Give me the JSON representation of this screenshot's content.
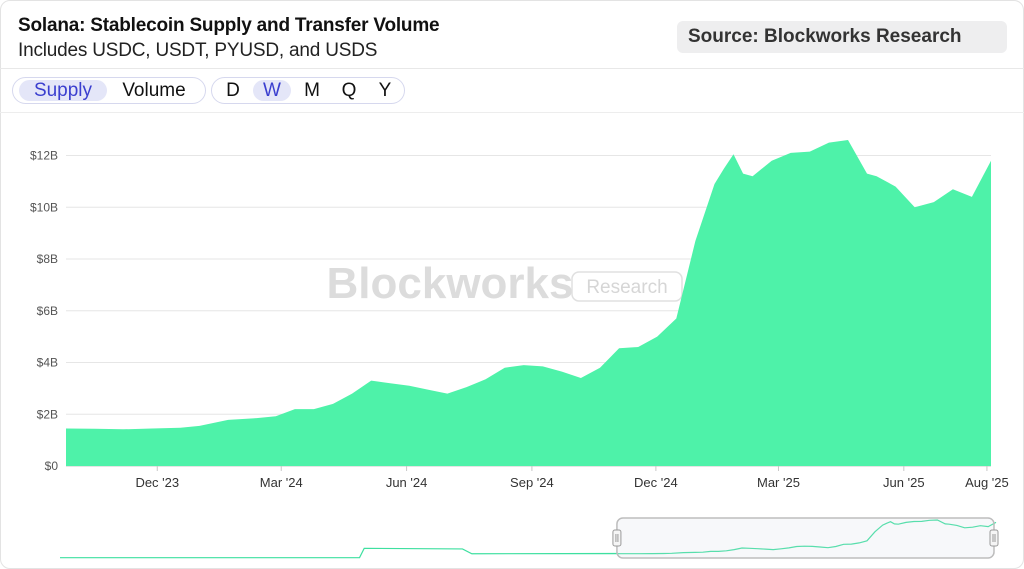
{
  "header": {
    "title": "Solana: Stablecoin Supply and Transfer Volume",
    "subtitle": "Includes USDC, USDT, PYUSD, and USDS",
    "source": "Source: Blockworks Research"
  },
  "controls": {
    "metric_tabs": [
      {
        "label": "Supply",
        "active": true
      },
      {
        "label": "Volume",
        "active": false
      }
    ],
    "interval_tabs": [
      {
        "label": "D",
        "active": false
      },
      {
        "label": "W",
        "active": true
      },
      {
        "label": "M",
        "active": false
      },
      {
        "label": "Q",
        "active": false
      },
      {
        "label": "Y",
        "active": false
      }
    ]
  },
  "watermark": {
    "brand": "Blockworks",
    "badge": "Research"
  },
  "colors": {
    "area_fill": "#4ef2a9",
    "active_tab_text": "#3b3fcf",
    "active_tab_bg": "#e4e6f8",
    "navigator_line": "#3ee0a0"
  },
  "chart_data": {
    "type": "area",
    "title": "Solana: Stablecoin Supply and Transfer Volume",
    "subtitle": "Includes USDC, USDT, PYUSD, and USDS",
    "xlabel": "",
    "ylabel": "",
    "grid": true,
    "ylim": [
      0,
      12.6
    ],
    "y_unit": "$B",
    "y_ticks": [
      "$0",
      "$2B",
      "$4B",
      "$6B",
      "$8B",
      "$10B",
      "$12B"
    ],
    "y_tick_values": [
      0,
      2,
      4,
      6,
      8,
      10,
      12
    ],
    "x_range": [
      "2023-09-25",
      "2025-08-04"
    ],
    "x_ticks": [
      {
        "label": "Dec '23",
        "date": "2023-12-01"
      },
      {
        "label": "Mar '24",
        "date": "2024-03-01"
      },
      {
        "label": "Jun '24",
        "date": "2024-06-01"
      },
      {
        "label": "Sep '24",
        "date": "2024-09-01"
      },
      {
        "label": "Dec '24",
        "date": "2024-12-01"
      },
      {
        "label": "Mar '25",
        "date": "2025-03-01"
      },
      {
        "label": "Jun '25",
        "date": "2025-06-01"
      },
      {
        "label": "Aug '25",
        "date": "2025-08-01"
      }
    ],
    "x": [
      "2023-09-25",
      "2023-10-16",
      "2023-11-06",
      "2023-11-27",
      "2023-12-18",
      "2024-01-01",
      "2024-01-22",
      "2024-02-12",
      "2024-02-26",
      "2024-03-11",
      "2024-03-25",
      "2024-04-08",
      "2024-04-22",
      "2024-05-06",
      "2024-05-20",
      "2024-06-03",
      "2024-06-17",
      "2024-07-01",
      "2024-07-15",
      "2024-07-29",
      "2024-08-12",
      "2024-08-26",
      "2024-09-09",
      "2024-09-23",
      "2024-10-07",
      "2024-10-21",
      "2024-11-04",
      "2024-11-18",
      "2024-12-02",
      "2024-12-16",
      "2024-12-30",
      "2025-01-13",
      "2025-01-20",
      "2025-01-27",
      "2025-02-03",
      "2025-02-10",
      "2025-02-24",
      "2025-03-10",
      "2025-03-24",
      "2025-04-07",
      "2025-04-21",
      "2025-05-05",
      "2025-05-12",
      "2025-05-26",
      "2025-06-09",
      "2025-06-23",
      "2025-07-07",
      "2025-07-21",
      "2025-08-04"
    ],
    "series": [
      {
        "values": [
          1.45,
          1.44,
          1.42,
          1.45,
          1.48,
          1.55,
          1.78,
          1.85,
          1.92,
          2.2,
          2.2,
          2.4,
          2.8,
          3.3,
          3.2,
          3.1,
          2.95,
          2.8,
          3.05,
          3.35,
          3.8,
          3.9,
          3.85,
          3.65,
          3.4,
          3.8,
          4.55,
          4.6,
          5.0,
          5.7,
          8.7,
          10.9,
          11.5,
          12.05,
          11.3,
          11.2,
          11.8,
          12.1,
          12.15,
          12.5,
          12.6,
          11.3,
          11.2,
          10.8,
          10.0,
          10.2,
          10.7,
          10.4,
          11.8
        ]
      }
    ]
  }
}
